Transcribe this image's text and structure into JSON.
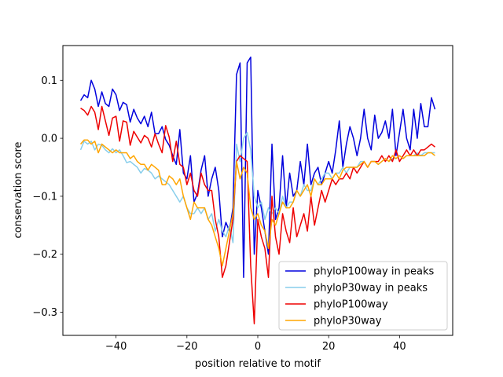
{
  "chart_data": {
    "type": "line",
    "title": "",
    "xlabel": "position relative to motif",
    "ylabel": "conservation score",
    "xlim": [
      -55,
      55
    ],
    "ylim": [
      -0.34,
      0.16
    ],
    "xticks": [
      -40,
      -20,
      0,
      20,
      40
    ],
    "xtick_labels": [
      "−40",
      "−20",
      "0",
      "20",
      "40"
    ],
    "yticks": [
      -0.3,
      -0.2,
      -0.1,
      0.0,
      0.1
    ],
    "ytick_labels": [
      "−0.3",
      "−0.2",
      "−0.1",
      "0.0",
      "0.1"
    ],
    "grid": false,
    "legend_position": "lower-right",
    "x": [
      -50,
      -49,
      -48,
      -47,
      -46,
      -45,
      -44,
      -43,
      -42,
      -41,
      -40,
      -39,
      -38,
      -37,
      -36,
      -35,
      -34,
      -33,
      -32,
      -31,
      -30,
      -29,
      -28,
      -27,
      -26,
      -25,
      -24,
      -23,
      -22,
      -21,
      -20,
      -19,
      -18,
      -17,
      -16,
      -15,
      -14,
      -13,
      -12,
      -11,
      -10,
      -9,
      -8,
      -7,
      -6,
      -5,
      -4,
      -3,
      -2,
      -1,
      0,
      1,
      2,
      3,
      4,
      5,
      6,
      7,
      8,
      9,
      10,
      11,
      12,
      13,
      14,
      15,
      16,
      17,
      18,
      19,
      20,
      21,
      22,
      23,
      24,
      25,
      26,
      27,
      28,
      29,
      30,
      31,
      32,
      33,
      34,
      35,
      36,
      37,
      38,
      39,
      40,
      41,
      42,
      43,
      44,
      45,
      46,
      47,
      48,
      49,
      50
    ],
    "series": [
      {
        "name": "phyloP100way in peaks",
        "color": "#0000dd",
        "values": [
          0.065,
          0.075,
          0.07,
          0.1,
          0.085,
          0.055,
          0.08,
          0.06,
          0.055,
          0.085,
          0.075,
          0.048,
          0.062,
          0.058,
          0.028,
          0.05,
          0.035,
          0.025,
          0.038,
          0.02,
          0.045,
          0.008,
          0.008,
          0.02,
          -0.002,
          -0.012,
          -0.03,
          -0.045,
          0.015,
          -0.06,
          -0.07,
          -0.03,
          -0.11,
          -0.095,
          -0.055,
          -0.03,
          -0.1,
          -0.07,
          -0.05,
          -0.09,
          -0.17,
          -0.145,
          -0.16,
          -0.12,
          0.11,
          0.13,
          -0.24,
          0.13,
          0.14,
          -0.2,
          -0.09,
          -0.12,
          -0.16,
          -0.2,
          -0.01,
          -0.14,
          -0.12,
          -0.03,
          -0.12,
          -0.06,
          -0.1,
          -0.09,
          -0.04,
          -0.08,
          -0.01,
          -0.08,
          -0.06,
          -0.05,
          -0.08,
          -0.06,
          -0.04,
          -0.06,
          -0.02,
          0.03,
          -0.05,
          -0.01,
          0.02,
          0.0,
          -0.03,
          0.0,
          0.05,
          0.0,
          -0.02,
          0.04,
          0.0,
          0.01,
          0.03,
          0.0,
          0.05,
          -0.03,
          0.01,
          0.05,
          0.0,
          -0.02,
          0.05,
          0.0,
          0.06,
          0.02,
          0.02,
          0.07,
          0.05
        ]
      },
      {
        "name": "phyloP30way in peaks",
        "color": "#87ceeb",
        "values": [
          -0.02,
          -0.005,
          -0.01,
          -0.005,
          -0.02,
          -0.01,
          -0.012,
          -0.02,
          -0.025,
          -0.018,
          -0.025,
          -0.02,
          -0.03,
          -0.042,
          -0.04,
          -0.045,
          -0.05,
          -0.06,
          -0.052,
          -0.055,
          -0.06,
          -0.07,
          -0.065,
          -0.07,
          -0.075,
          -0.08,
          -0.09,
          -0.1,
          -0.11,
          -0.1,
          -0.12,
          -0.13,
          -0.13,
          -0.12,
          -0.13,
          -0.12,
          -0.14,
          -0.13,
          -0.16,
          -0.14,
          -0.16,
          -0.17,
          -0.15,
          -0.18,
          -0.01,
          -0.04,
          0.0,
          0.01,
          -0.02,
          -0.1,
          -0.12,
          -0.11,
          -0.14,
          -0.12,
          -0.13,
          -0.12,
          -0.13,
          -0.1,
          -0.12,
          -0.11,
          -0.11,
          -0.09,
          -0.1,
          -0.08,
          -0.09,
          -0.09,
          -0.07,
          -0.08,
          -0.07,
          -0.06,
          -0.06,
          -0.07,
          -0.06,
          -0.06,
          -0.05,
          -0.06,
          -0.05,
          -0.05,
          -0.05,
          -0.04,
          -0.04,
          -0.05,
          -0.04,
          -0.04,
          -0.045,
          -0.04,
          -0.035,
          -0.04,
          -0.035,
          -0.035,
          -0.03,
          -0.035,
          -0.03,
          -0.03,
          -0.03,
          -0.025,
          -0.03,
          -0.025,
          -0.025,
          -0.025,
          -0.025
        ]
      },
      {
        "name": "phyloP100way",
        "color": "#ee0000",
        "values": [
          0.052,
          0.048,
          0.04,
          0.055,
          0.045,
          0.015,
          0.055,
          0.03,
          0.005,
          0.035,
          0.038,
          -0.005,
          0.03,
          0.028,
          -0.012,
          0.012,
          0.002,
          -0.008,
          0.005,
          0.0,
          -0.015,
          0.008,
          -0.01,
          -0.025,
          0.022,
          0.002,
          -0.04,
          -0.005,
          -0.045,
          -0.05,
          -0.08,
          -0.06,
          -0.09,
          -0.1,
          -0.06,
          -0.08,
          -0.09,
          -0.09,
          -0.14,
          -0.17,
          -0.24,
          -0.22,
          -0.18,
          -0.14,
          -0.04,
          -0.03,
          -0.035,
          -0.04,
          -0.22,
          -0.32,
          -0.14,
          -0.17,
          -0.19,
          -0.24,
          -0.1,
          -0.17,
          -0.2,
          -0.13,
          -0.16,
          -0.18,
          -0.12,
          -0.17,
          -0.15,
          -0.13,
          -0.16,
          -0.1,
          -0.15,
          -0.12,
          -0.09,
          -0.11,
          -0.09,
          -0.07,
          -0.08,
          -0.07,
          -0.07,
          -0.06,
          -0.07,
          -0.05,
          -0.06,
          -0.05,
          -0.04,
          -0.05,
          -0.04,
          -0.04,
          -0.04,
          -0.03,
          -0.04,
          -0.03,
          -0.04,
          -0.02,
          -0.04,
          -0.03,
          -0.02,
          -0.03,
          -0.02,
          -0.03,
          -0.02,
          -0.02,
          -0.015,
          -0.01,
          -0.015
        ]
      },
      {
        "name": "phyloP30way",
        "color": "#ffa500",
        "values": [
          -0.01,
          -0.003,
          -0.003,
          -0.01,
          -0.005,
          -0.025,
          -0.01,
          -0.015,
          -0.02,
          -0.025,
          -0.02,
          -0.025,
          -0.025,
          -0.025,
          -0.035,
          -0.03,
          -0.04,
          -0.045,
          -0.045,
          -0.055,
          -0.045,
          -0.05,
          -0.055,
          -0.08,
          -0.08,
          -0.065,
          -0.07,
          -0.08,
          -0.07,
          -0.1,
          -0.12,
          -0.14,
          -0.11,
          -0.12,
          -0.12,
          -0.12,
          -0.14,
          -0.15,
          -0.17,
          -0.19,
          -0.22,
          -0.19,
          -0.16,
          -0.13,
          -0.04,
          -0.07,
          -0.05,
          -0.06,
          -0.12,
          -0.14,
          -0.13,
          -0.15,
          -0.16,
          -0.19,
          -0.14,
          -0.15,
          -0.13,
          -0.11,
          -0.12,
          -0.12,
          -0.11,
          -0.09,
          -0.1,
          -0.09,
          -0.08,
          -0.1,
          -0.07,
          -0.08,
          -0.08,
          -0.07,
          -0.07,
          -0.07,
          -0.06,
          -0.07,
          -0.055,
          -0.05,
          -0.05,
          -0.05,
          -0.05,
          -0.045,
          -0.04,
          -0.05,
          -0.04,
          -0.04,
          -0.045,
          -0.04,
          -0.035,
          -0.04,
          -0.03,
          -0.035,
          -0.03,
          -0.035,
          -0.03,
          -0.03,
          -0.03,
          -0.03,
          -0.03,
          -0.03,
          -0.025,
          -0.025,
          -0.03
        ]
      }
    ]
  }
}
